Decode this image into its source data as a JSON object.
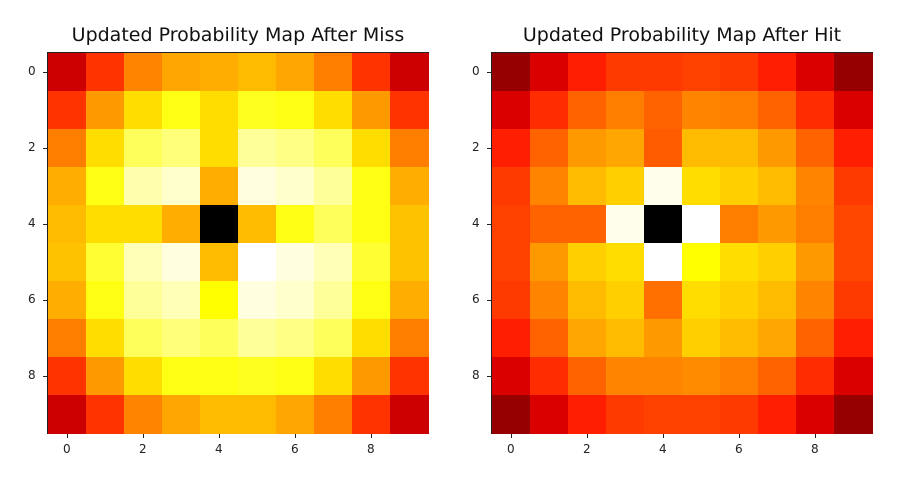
{
  "chart_data": [
    {
      "type": "heatmap",
      "title": "Updated Probability Map After Miss",
      "colormap": "hot",
      "xticks": [
        "0",
        "2",
        "4",
        "6",
        "8"
      ],
      "yticks": [
        "0",
        "2",
        "4",
        "6",
        "8"
      ],
      "values": [
        [
          0.3,
          0.45,
          0.57,
          0.62,
          0.63,
          0.65,
          0.62,
          0.56,
          0.45,
          0.3
        ],
        [
          0.45,
          0.6,
          0.7,
          0.77,
          0.7,
          0.78,
          0.77,
          0.7,
          0.6,
          0.45
        ],
        [
          0.56,
          0.7,
          0.84,
          0.87,
          0.7,
          0.9,
          0.88,
          0.84,
          0.7,
          0.56
        ],
        [
          0.63,
          0.77,
          0.92,
          0.95,
          0.63,
          0.97,
          0.95,
          0.9,
          0.77,
          0.63
        ],
        [
          0.65,
          0.7,
          0.7,
          0.63,
          0.0,
          0.65,
          0.77,
          0.84,
          0.77,
          0.66
        ],
        [
          0.66,
          0.8,
          0.93,
          0.97,
          0.65,
          1.0,
          0.97,
          0.93,
          0.8,
          0.66
        ],
        [
          0.63,
          0.77,
          0.9,
          0.93,
          0.75,
          0.97,
          0.95,
          0.9,
          0.77,
          0.63
        ],
        [
          0.56,
          0.7,
          0.84,
          0.87,
          0.84,
          0.9,
          0.88,
          0.84,
          0.7,
          0.56
        ],
        [
          0.45,
          0.6,
          0.7,
          0.77,
          0.77,
          0.78,
          0.77,
          0.7,
          0.6,
          0.45
        ],
        [
          0.3,
          0.45,
          0.57,
          0.62,
          0.65,
          0.65,
          0.62,
          0.56,
          0.45,
          0.3
        ]
      ]
    },
    {
      "type": "heatmap",
      "title": "Updated Probability Map After Hit",
      "colormap": "hot",
      "xticks": [
        "0",
        "2",
        "4",
        "6",
        "8"
      ],
      "yticks": [
        "0",
        "2",
        "4",
        "6",
        "8"
      ],
      "values": [
        [
          0.22,
          0.32,
          0.42,
          0.46,
          0.46,
          0.47,
          0.46,
          0.42,
          0.32,
          0.22
        ],
        [
          0.32,
          0.44,
          0.52,
          0.56,
          0.52,
          0.57,
          0.56,
          0.52,
          0.44,
          0.32
        ],
        [
          0.42,
          0.52,
          0.6,
          0.62,
          0.51,
          0.65,
          0.65,
          0.6,
          0.52,
          0.42
        ],
        [
          0.46,
          0.57,
          0.65,
          0.68,
          0.98,
          0.7,
          0.68,
          0.65,
          0.57,
          0.46
        ],
        [
          0.47,
          0.52,
          0.52,
          0.98,
          0.0,
          1.0,
          0.56,
          0.6,
          0.56,
          0.48
        ],
        [
          0.47,
          0.6,
          0.68,
          0.7,
          1.0,
          0.75,
          0.7,
          0.68,
          0.6,
          0.48
        ],
        [
          0.46,
          0.57,
          0.65,
          0.68,
          0.54,
          0.7,
          0.68,
          0.65,
          0.57,
          0.46
        ],
        [
          0.42,
          0.52,
          0.62,
          0.65,
          0.6,
          0.68,
          0.65,
          0.62,
          0.52,
          0.42
        ],
        [
          0.32,
          0.44,
          0.52,
          0.57,
          0.57,
          0.58,
          0.56,
          0.52,
          0.44,
          0.32
        ],
        [
          0.22,
          0.32,
          0.42,
          0.46,
          0.47,
          0.47,
          0.46,
          0.42,
          0.32,
          0.22
        ]
      ]
    }
  ]
}
